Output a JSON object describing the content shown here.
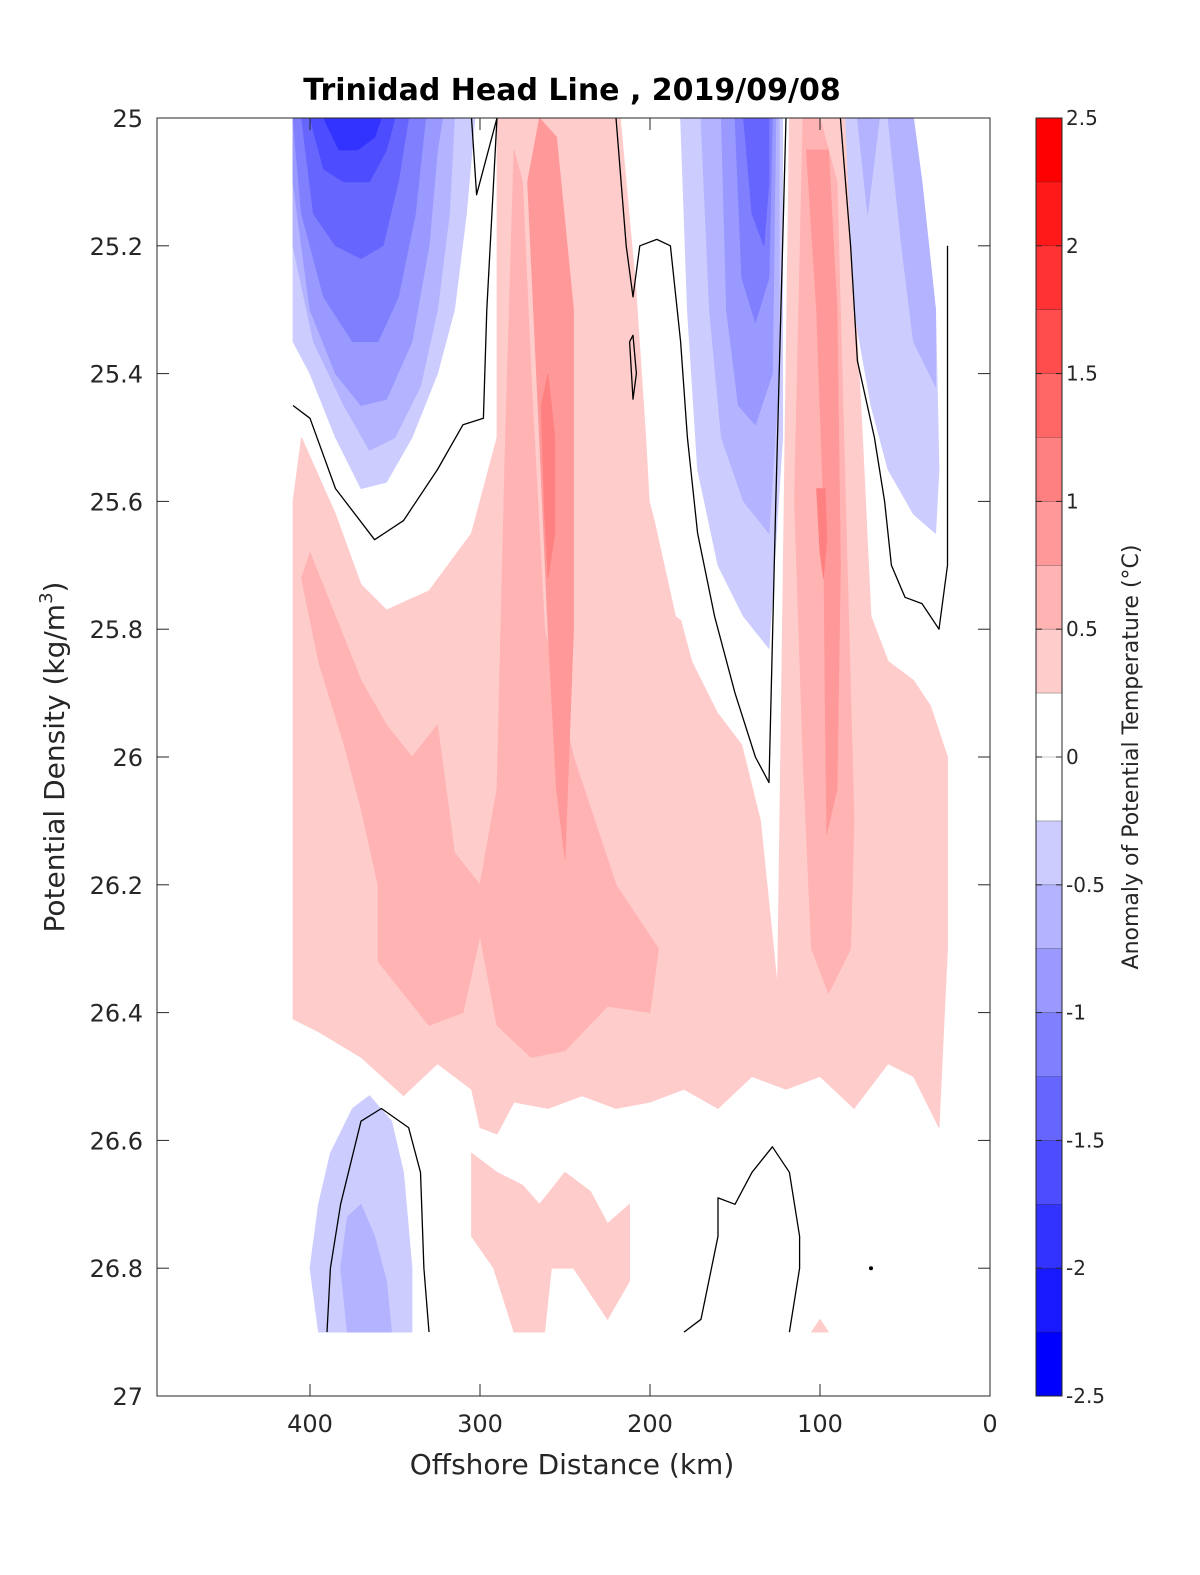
{
  "chart_data": {
    "type": "heatmap",
    "subtype": "filled-contour-section",
    "title": "Trinidad Head Line , 2019/09/08",
    "xlabel": "Offshore Distance (km)",
    "ylabel": "Potential Density (kg/m3)",
    "ylabel_base": "Potential Density (kg/m",
    "ylabel_sup": "3",
    "ylabel_end": ")",
    "x_reversed": true,
    "y_reversed": true,
    "xlim": [
      490,
      0
    ],
    "ylim": [
      25,
      27
    ],
    "xticks": [
      400,
      300,
      200,
      100,
      0
    ],
    "xtick_labels": [
      "400",
      "300",
      "200",
      "100",
      "0"
    ],
    "yticks": [
      25,
      25.2,
      25.4,
      25.6,
      25.8,
      26,
      26.2,
      26.4,
      26.6,
      26.8,
      27
    ],
    "ytick_labels": [
      "25",
      "25.2",
      "25.4",
      "25.6",
      "25.8",
      "26",
      "26.2",
      "26.4",
      "26.6",
      "26.8",
      "27"
    ],
    "colorbar": {
      "label": "Anomaly of Potential Temperature (°C)",
      "range": [
        -2.5,
        2.5
      ],
      "levels_step": 0.25,
      "ticks": [
        2.5,
        2,
        1.5,
        1,
        0.5,
        0,
        -0.5,
        -1,
        -1.5,
        -2,
        -2.5
      ],
      "tick_labels": [
        "2.5",
        "2",
        "1.5",
        "1",
        "0.5",
        "0",
        "-0.5",
        "-1",
        "-1.5",
        "-2",
        "-2.5"
      ],
      "colormap": "blue-white-red"
    },
    "fields": [
      {
        "label": "cold core offshore upper",
        "x_range": [
          410,
          300
        ],
        "sigma_range": [
          25.0,
          25.66
        ],
        "min_anomaly": -2.25
      },
      {
        "label": "warm band ~260 km",
        "x_range": [
          290,
          220
        ],
        "sigma_range": [
          25.0,
          26.47
        ],
        "max_anomaly": 1.0
      },
      {
        "label": "cold core ~140 km",
        "x_range": [
          180,
          120
        ],
        "sigma_range": [
          25.0,
          25.83
        ],
        "min_anomaly": -1.5
      },
      {
        "label": "warm band ~100 km",
        "x_range": [
          115,
          75
        ],
        "sigma_range": [
          25.0,
          26.37
        ],
        "max_anomaly": 1.0
      },
      {
        "label": "cool patch nearshore upper",
        "x_range": [
          90,
          30
        ],
        "sigma_range": [
          25.0,
          25.8
        ],
        "min_anomaly": -0.75
      },
      {
        "label": "warm layer mid-depth",
        "x_range": [
          410,
          25
        ],
        "sigma_range": [
          25.6,
          26.58
        ],
        "max_anomaly": 0.75
      },
      {
        "label": "cool patch deep offshore",
        "x_range": [
          390,
          330
        ],
        "sigma_range": [
          26.55,
          26.9
        ],
        "min_anomaly": -0.75
      },
      {
        "label": "warm patch deep",
        "x_range": [
          305,
          210
        ],
        "sigma_range": [
          26.62,
          26.9
        ],
        "max_anomaly": 0.5
      }
    ],
    "zero_contours": true
  }
}
